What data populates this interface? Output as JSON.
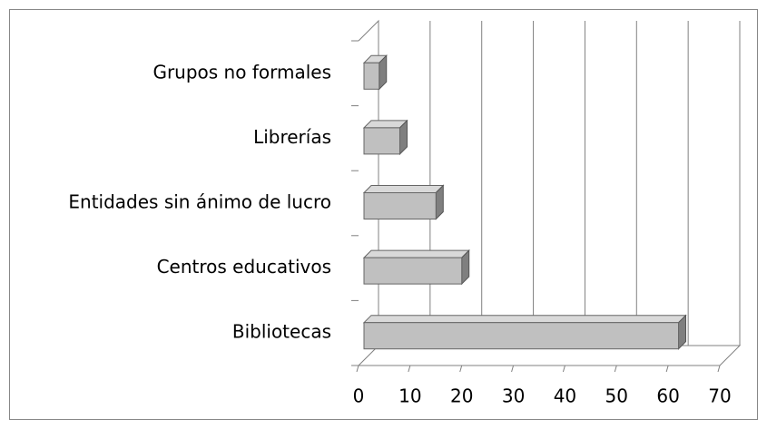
{
  "chart_data": {
    "type": "bar3d_horizontal",
    "categories": [
      "Grupos no formales",
      "Librerías",
      "Entidades sin ánimo de lucro",
      "Centros educativos",
      "Bibliotecas"
    ],
    "values": [
      4,
      8,
      15,
      20,
      62
    ],
    "color": "#c0c0c0",
    "xlim": [
      0,
      70
    ],
    "xticks": [
      0,
      10,
      20,
      30,
      40,
      50,
      60,
      70
    ],
    "grid": true
  }
}
